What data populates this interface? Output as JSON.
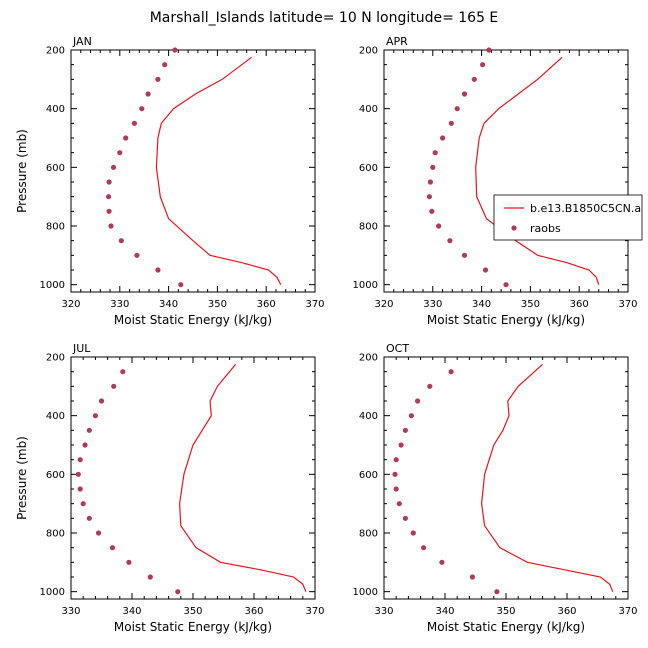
{
  "figure": {
    "title": "Marshall_Islands  latitude= 10 N longitude= 165 E"
  },
  "colors": {
    "model_line": "#e8141e",
    "obs_marker": "#b03a5a",
    "axis": "#000000"
  },
  "legend": {
    "placement": "right, beside APR panel",
    "entries": [
      {
        "label": "b.e13.B1850C5CN.a",
        "kind": "line"
      },
      {
        "label": "raobs",
        "kind": "marker"
      }
    ]
  },
  "chart_data": [
    {
      "type": "line",
      "panel": "JAN",
      "xlabel": "Moist Static Energy (kJ/kg)",
      "ylabel": "Pressure (mb)",
      "xlim": [
        320,
        370
      ],
      "ylim": [
        200,
        1025
      ],
      "y_inverted": true,
      "xticks": [
        320,
        330,
        340,
        350,
        360,
        370
      ],
      "yticks": [
        200,
        400,
        600,
        800,
        1000
      ],
      "series": [
        {
          "name": "b.e13.B1850C5CN.a",
          "style": "line",
          "x": [
            363.0,
            362.2,
            360.5,
            355.0,
            348.5,
            345.0,
            340.0,
            338.3,
            337.5,
            337.8,
            338.5,
            341.0,
            345.5,
            351.0,
            357.0
          ],
          "y": [
            1000,
            975,
            950,
            925,
            900,
            850,
            775,
            700,
            600,
            500,
            450,
            400,
            350,
            300,
            225
          ]
        },
        {
          "name": "raobs",
          "style": "marker",
          "x": [
            342.5,
            337.8,
            333.5,
            330.3,
            328.2,
            327.8,
            327.7,
            327.8,
            328.7,
            330.0,
            331.2,
            333.0,
            334.5,
            335.8,
            337.8,
            339.2,
            341.3
          ],
          "y": [
            1000,
            950,
            900,
            850,
            800,
            750,
            700,
            650,
            600,
            550,
            500,
            450,
            400,
            350,
            300,
            250,
            200
          ]
        }
      ]
    },
    {
      "type": "line",
      "panel": "APR",
      "xlabel": "Moist Static Energy (kJ/kg)",
      "ylabel": "",
      "xlim": [
        320,
        370
      ],
      "ylim": [
        200,
        1025
      ],
      "y_inverted": true,
      "xticks": [
        320,
        330,
        340,
        350,
        360,
        370
      ],
      "yticks": [
        200,
        400,
        600,
        800,
        1000
      ],
      "series": [
        {
          "name": "b.e13.B1850C5CN.a",
          "style": "line",
          "x": [
            364.0,
            363.5,
            362.0,
            357.5,
            351.5,
            347.0,
            341.0,
            339.0,
            338.8,
            339.5,
            340.5,
            343.5,
            347.5,
            351.5,
            356.5
          ],
          "y": [
            1000,
            975,
            950,
            925,
            900,
            850,
            775,
            700,
            600,
            500,
            450,
            400,
            350,
            300,
            225
          ]
        },
        {
          "name": "raobs",
          "style": "marker",
          "x": [
            345.0,
            340.8,
            336.5,
            333.5,
            331.2,
            329.8,
            329.3,
            329.5,
            330.0,
            330.5,
            332.0,
            333.8,
            335.0,
            336.5,
            338.5,
            340.2,
            341.5
          ],
          "y": [
            1000,
            950,
            900,
            850,
            800,
            750,
            700,
            650,
            600,
            550,
            500,
            450,
            400,
            350,
            300,
            250,
            200
          ]
        }
      ]
    },
    {
      "type": "line",
      "panel": "JUL",
      "xlabel": "Moist Static Energy (kJ/kg)",
      "ylabel": "Pressure (mb)",
      "xlim": [
        330,
        370
      ],
      "ylim": [
        200,
        1025
      ],
      "y_inverted": true,
      "xticks": [
        330,
        340,
        350,
        360,
        370
      ],
      "yticks": [
        200,
        400,
        600,
        800,
        1000
      ],
      "series": [
        {
          "name": "b.e13.B1850C5CN.a",
          "style": "line",
          "x": [
            368.5,
            368.0,
            366.5,
            361.0,
            354.5,
            350.5,
            348.0,
            347.8,
            348.5,
            350.0,
            351.5,
            353.0,
            352.8,
            354.0,
            357.0
          ],
          "y": [
            1000,
            975,
            950,
            925,
            900,
            850,
            775,
            700,
            600,
            500,
            450,
            400,
            350,
            300,
            225
          ]
        },
        {
          "name": "raobs",
          "style": "marker",
          "x": [
            347.5,
            343.0,
            339.5,
            336.8,
            334.5,
            333.0,
            332.0,
            331.5,
            331.2,
            331.5,
            332.3,
            333.0,
            334.0,
            335.0,
            337.0,
            338.5
          ],
          "y": [
            1000,
            950,
            900,
            850,
            800,
            750,
            700,
            650,
            600,
            550,
            500,
            450,
            400,
            350,
            300,
            250
          ]
        }
      ]
    },
    {
      "type": "line",
      "panel": "OCT",
      "xlabel": "Moist Static Energy (kJ/kg)",
      "ylabel": "",
      "xlim": [
        330,
        370
      ],
      "ylim": [
        200,
        1025
      ],
      "y_inverted": true,
      "xticks": [
        330,
        340,
        350,
        360,
        370
      ],
      "yticks": [
        200,
        400,
        600,
        800,
        1000
      ],
      "series": [
        {
          "name": "b.e13.B1850C5CN.a",
          "style": "line",
          "x": [
            367.5,
            367.0,
            365.5,
            359.5,
            353.5,
            349.0,
            346.5,
            346.0,
            346.5,
            348.0,
            349.5,
            350.5,
            350.3,
            352.0,
            356.0
          ],
          "y": [
            1000,
            975,
            950,
            925,
            900,
            850,
            775,
            700,
            600,
            500,
            450,
            400,
            350,
            300,
            225
          ]
        },
        {
          "name": "raobs",
          "style": "marker",
          "x": [
            348.5,
            344.5,
            339.5,
            336.5,
            334.8,
            333.5,
            332.5,
            332.0,
            331.8,
            332.0,
            332.8,
            333.5,
            334.5,
            335.5,
            337.5,
            341.0
          ],
          "y": [
            1000,
            950,
            900,
            850,
            800,
            750,
            700,
            650,
            600,
            550,
            500,
            450,
            400,
            350,
            300,
            250
          ]
        }
      ]
    }
  ]
}
